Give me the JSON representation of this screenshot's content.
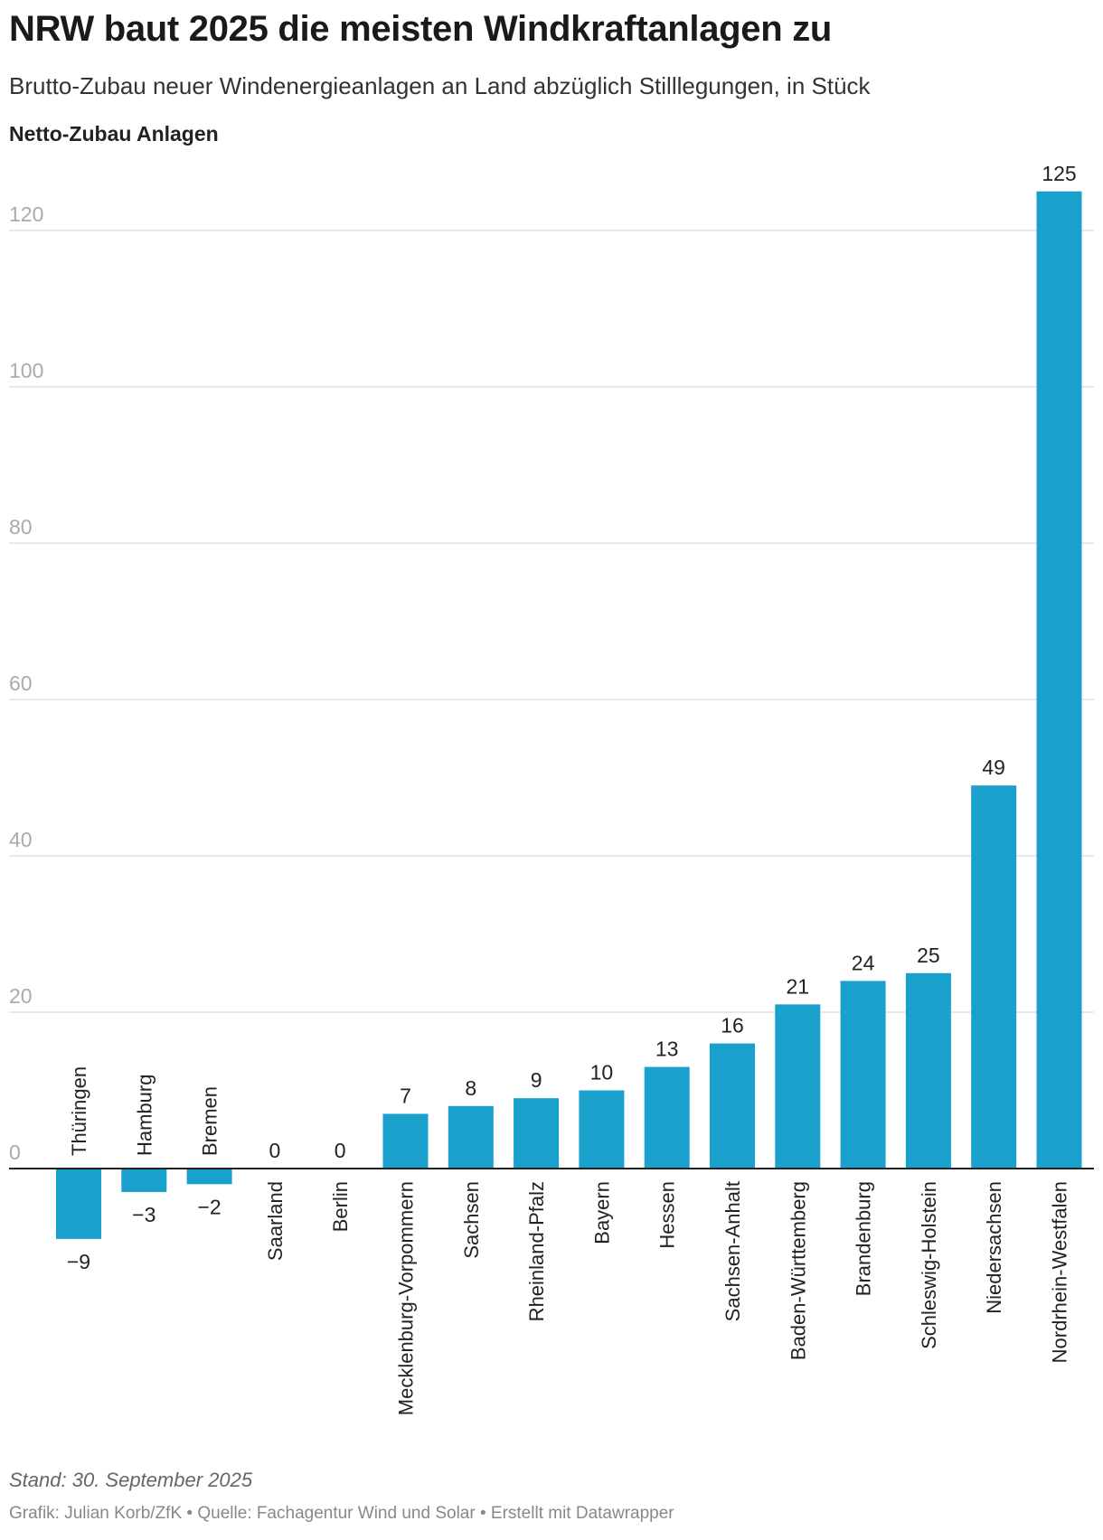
{
  "title": "NRW baut 2025 die meisten Windkraftanlagen zu",
  "subtitle": "Brutto-Zubau neuer Windenergieanlagen an Land abzüglich Stilllegungen, in Stück",
  "note": "Stand: 30. September 2025",
  "credits": {
    "graphic": "Grafik: Julian Korb/ZfK",
    "source": "Quelle: Fachagentur Wind und Solar",
    "tool": "Erstellt mit Datawrapper",
    "separator": " • "
  },
  "colors": {
    "bar": "#1aa0cc",
    "grid": "#e0e0e0",
    "axis": "#222222",
    "tick": "#aaaaaa"
  },
  "chart_data": {
    "type": "bar",
    "title": "NRW baut 2025 die meisten Windkraftanlagen zu",
    "xlabel": "",
    "ylabel": "Netto-Zubau Anlagen",
    "ylim": [
      -12,
      126
    ],
    "yticks": [
      0,
      20,
      40,
      60,
      80,
      100,
      120
    ],
    "grid": true,
    "categories": [
      "Thüringen",
      "Hamburg",
      "Bremen",
      "Saarland",
      "Berlin",
      "Mecklenburg-Vorpommern",
      "Sachsen",
      "Rheinland-Pfalz",
      "Bayern",
      "Hessen",
      "Sachsen-Anhalt",
      "Baden-Württemberg",
      "Brandenburg",
      "Schleswig-Holstein",
      "Niedersachsen",
      "Nordrhein-Westfalen"
    ],
    "values": [
      -9,
      -3,
      -2,
      0,
      0,
      7,
      8,
      9,
      10,
      13,
      16,
      21,
      24,
      25,
      49,
      125
    ],
    "value_labels": [
      "−9",
      "−3",
      "−2",
      "0",
      "0",
      "7",
      "8",
      "9",
      "10",
      "13",
      "16",
      "21",
      "24",
      "25",
      "49",
      "125"
    ]
  }
}
